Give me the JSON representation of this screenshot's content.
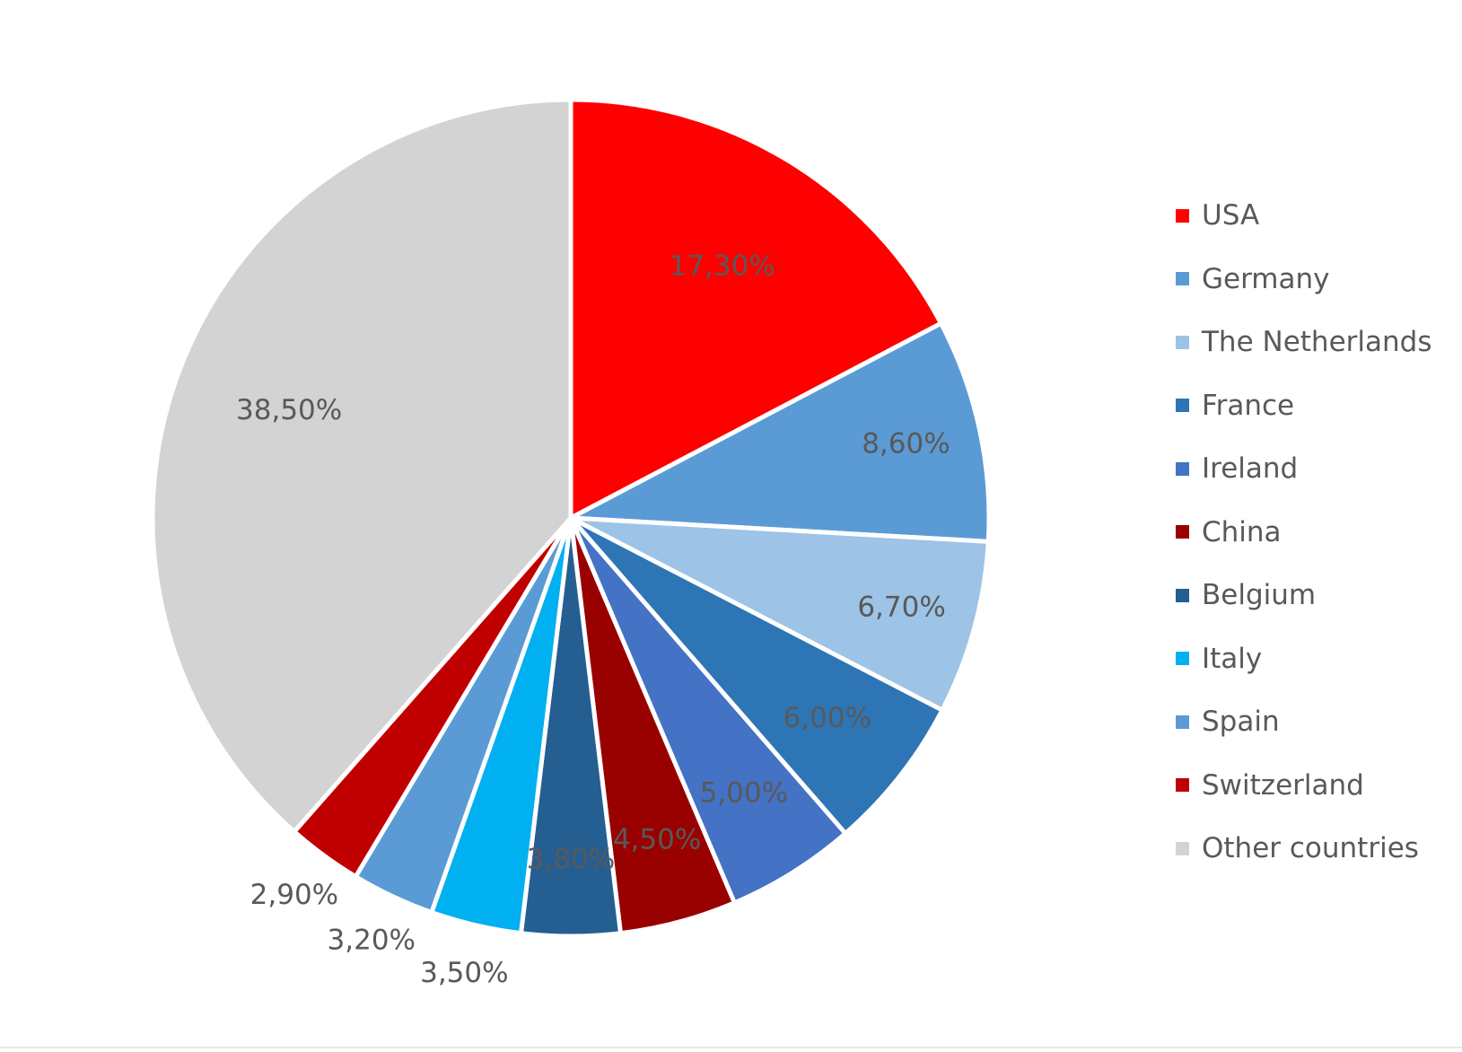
{
  "chart_data": {
    "type": "pie",
    "title": "",
    "slices": [
      {
        "label": "USA",
        "value": 17.3,
        "value_label": "17,30%",
        "color": "#ff0000"
      },
      {
        "label": "Germany",
        "value": 8.6,
        "value_label": "8,60%",
        "color": "#5b9bd5"
      },
      {
        "label": "The Netherlands",
        "value": 6.7,
        "value_label": "6,70%",
        "color": "#9dc3e6"
      },
      {
        "label": "France",
        "value": 6.0,
        "value_label": "6,00%",
        "color": "#2e75b6"
      },
      {
        "label": "Ireland",
        "value": 5.0,
        "value_label": "5,00%",
        "color": "#4472c4"
      },
      {
        "label": "China",
        "value": 4.5,
        "value_label": "4,50%",
        "color": "#990000"
      },
      {
        "label": "Belgium",
        "value": 3.8,
        "value_label": "3,80%",
        "color": "#255e91"
      },
      {
        "label": "Italy",
        "value": 3.5,
        "value_label": "3,50%",
        "color": "#00b0f0"
      },
      {
        "label": "Spain",
        "value": 3.2,
        "value_label": "3,20%",
        "color": "#5b9bd5"
      },
      {
        "label": "Switzerland",
        "value": 2.9,
        "value_label": "2,90%",
        "color": "#c00000"
      },
      {
        "label": "Other countries",
        "value": 38.5,
        "value_label": "38,50%",
        "color": "#d3d3d3"
      }
    ],
    "legend_position": "right",
    "start_angle": "12 o'clock",
    "direction": "clockwise",
    "label_color": "#595959"
  }
}
